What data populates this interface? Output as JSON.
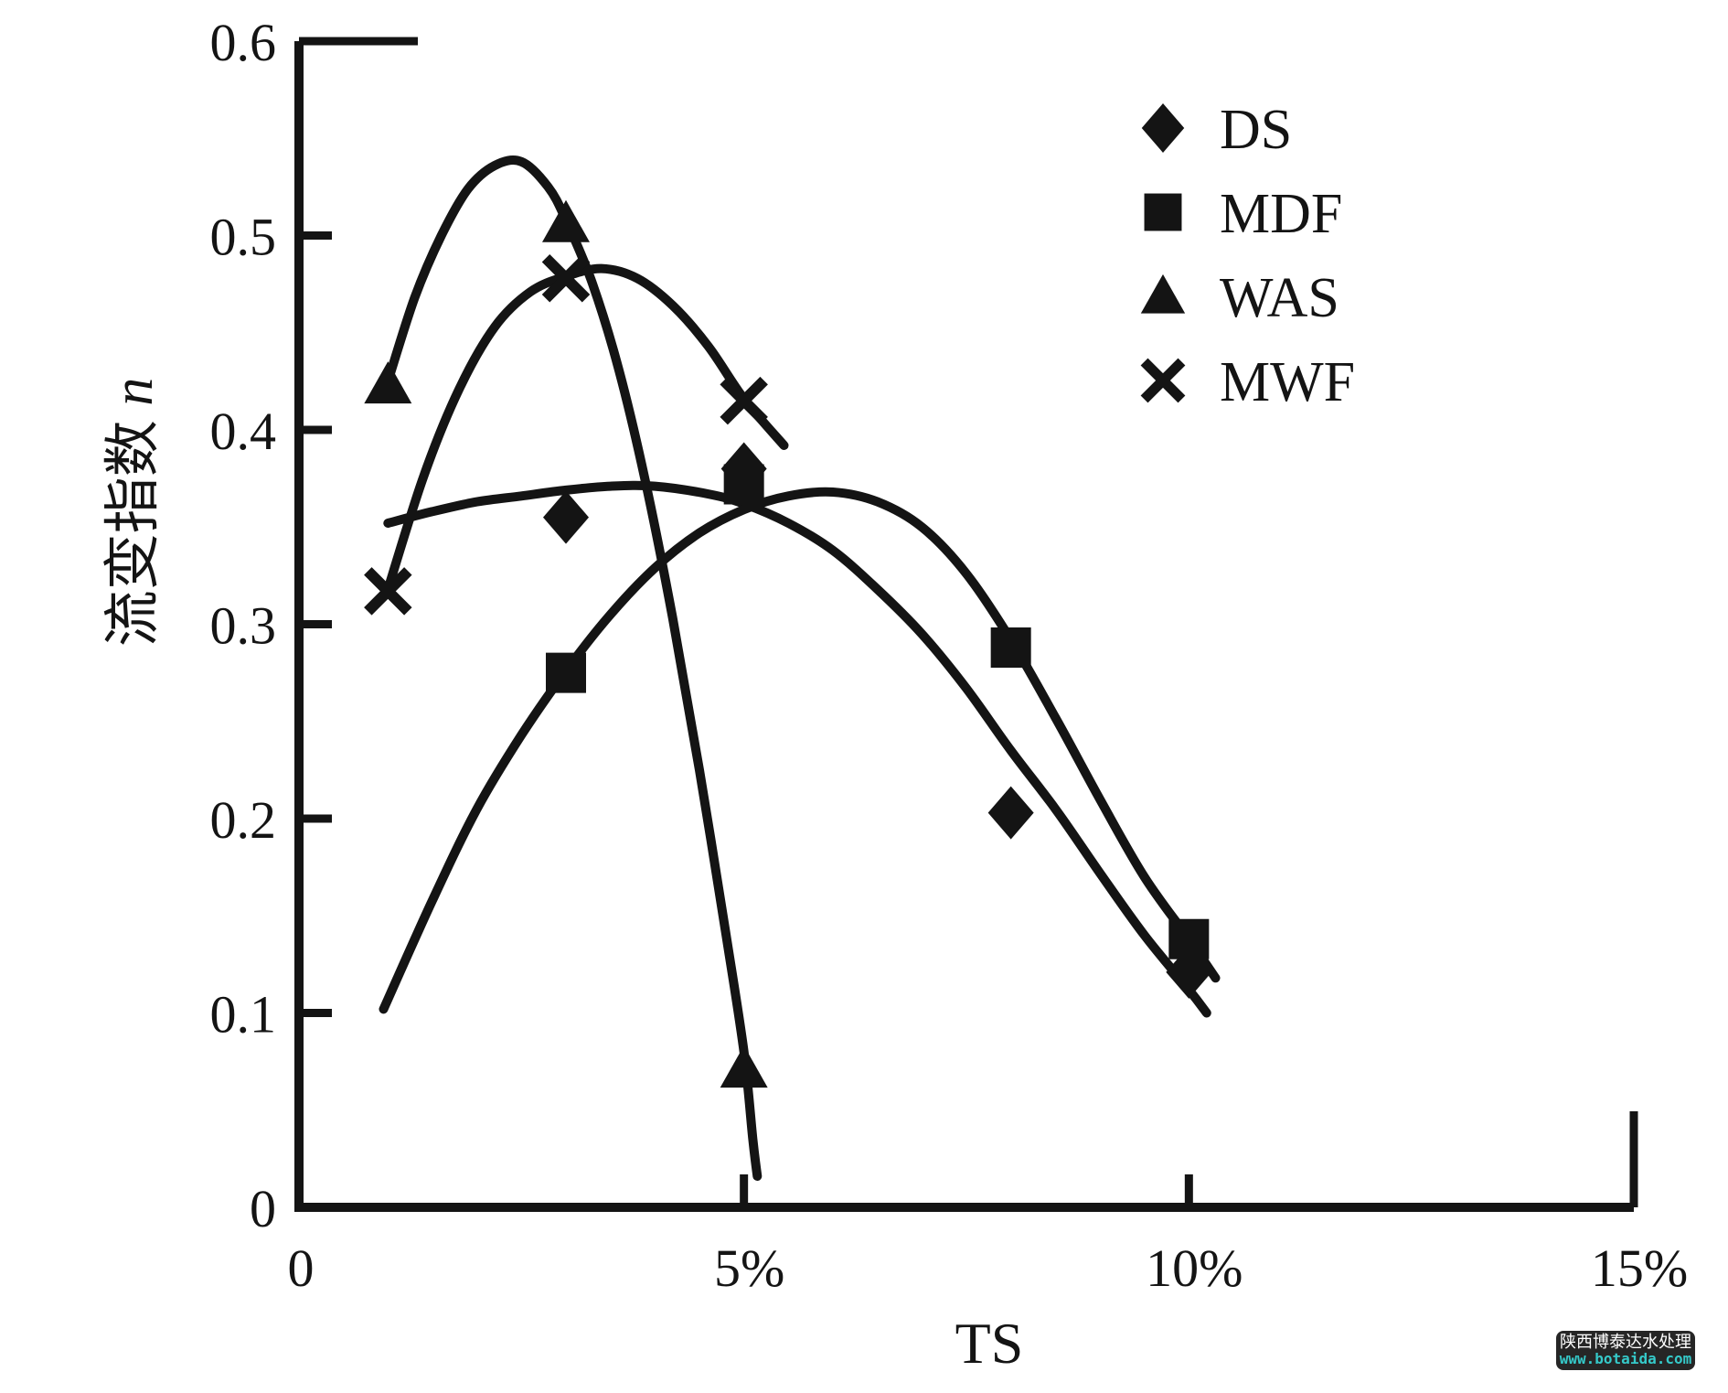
{
  "figure": {
    "background": "#ffffff",
    "ink_color": "#141414"
  },
  "chart_data": {
    "type": "scatter",
    "title": "",
    "xlabel": "TS",
    "ylabel_cjk": "流变指数",
    "ylabel_var": "n",
    "xlim": [
      0,
      15.2
    ],
    "ylim": [
      0,
      0.6
    ],
    "grid": false,
    "legend_position": "upper right",
    "x_ticks": [
      {
        "value": 0,
        "label": "0"
      },
      {
        "value": 5,
        "label": "5%"
      },
      {
        "value": 10,
        "label": "10%"
      },
      {
        "value": 15,
        "label": "15%"
      }
    ],
    "y_ticks": [
      {
        "value": 0,
        "label": "0"
      },
      {
        "value": 0.1,
        "label": "0.1"
      },
      {
        "value": 0.2,
        "label": "0.2"
      },
      {
        "value": 0.3,
        "label": "0.3"
      },
      {
        "value": 0.4,
        "label": "0.4"
      },
      {
        "value": 0.5,
        "label": "0.5"
      },
      {
        "value": 0.6,
        "label": "0.6"
      }
    ],
    "series": [
      {
        "name": "DS",
        "marker": "diamond",
        "points": [
          [
            3,
            0.355
          ],
          [
            5,
            0.38
          ],
          [
            8,
            0.203
          ],
          [
            10,
            0.121
          ]
        ],
        "fit_curve": [
          [
            1,
            0.352
          ],
          [
            1.5,
            0.358
          ],
          [
            2,
            0.363
          ],
          [
            2.5,
            0.366
          ],
          [
            3,
            0.369
          ],
          [
            3.5,
            0.371
          ],
          [
            4,
            0.371
          ],
          [
            4.6,
            0.367
          ],
          [
            5,
            0.362
          ],
          [
            5.5,
            0.352
          ],
          [
            6,
            0.338
          ],
          [
            6.5,
            0.318
          ],
          [
            7,
            0.295
          ],
          [
            7.5,
            0.267
          ],
          [
            8,
            0.235
          ],
          [
            8.5,
            0.205
          ],
          [
            9,
            0.172
          ],
          [
            9.5,
            0.14
          ],
          [
            10,
            0.112
          ],
          [
            10.2,
            0.1
          ]
        ]
      },
      {
        "name": "MDF",
        "marker": "square",
        "points": [
          [
            3,
            0.275
          ],
          [
            5,
            0.372
          ],
          [
            8,
            0.288
          ],
          [
            10,
            0.138
          ]
        ],
        "fit_curve": [
          [
            0.95,
            0.102
          ],
          [
            1.5,
            0.158
          ],
          [
            2,
            0.205
          ],
          [
            2.5,
            0.243
          ],
          [
            3,
            0.276
          ],
          [
            3.5,
            0.305
          ],
          [
            4,
            0.329
          ],
          [
            4.5,
            0.347
          ],
          [
            5,
            0.359
          ],
          [
            5.5,
            0.366
          ],
          [
            6,
            0.368
          ],
          [
            6.5,
            0.363
          ],
          [
            7,
            0.35
          ],
          [
            7.5,
            0.326
          ],
          [
            8,
            0.292
          ],
          [
            8.5,
            0.252
          ],
          [
            9,
            0.21
          ],
          [
            9.5,
            0.17
          ],
          [
            10,
            0.138
          ],
          [
            10.3,
            0.118
          ]
        ]
      },
      {
        "name": "WAS",
        "marker": "triangle",
        "points": [
          [
            1,
            0.423
          ],
          [
            3,
            0.506
          ],
          [
            5,
            0.071
          ]
        ],
        "fit_curve": [
          [
            1,
            0.425
          ],
          [
            1.3,
            0.468
          ],
          [
            1.6,
            0.5
          ],
          [
            1.9,
            0.524
          ],
          [
            2.2,
            0.536
          ],
          [
            2.5,
            0.538
          ],
          [
            2.8,
            0.525
          ],
          [
            3,
            0.508
          ],
          [
            3.3,
            0.475
          ],
          [
            3.6,
            0.43
          ],
          [
            3.9,
            0.372
          ],
          [
            4.2,
            0.303
          ],
          [
            4.5,
            0.225
          ],
          [
            4.8,
            0.14
          ],
          [
            5,
            0.08
          ],
          [
            5.1,
            0.035
          ],
          [
            5.15,
            0.016
          ]
        ]
      },
      {
        "name": "MWF",
        "marker": "x",
        "points": [
          [
            1,
            0.317
          ],
          [
            3,
            0.478
          ],
          [
            5,
            0.415
          ]
        ],
        "fit_curve": [
          [
            1,
            0.318
          ],
          [
            1.4,
            0.376
          ],
          [
            1.8,
            0.421
          ],
          [
            2.2,
            0.453
          ],
          [
            2.6,
            0.471
          ],
          [
            3,
            0.479
          ],
          [
            3.4,
            0.483
          ],
          [
            3.8,
            0.478
          ],
          [
            4.2,
            0.464
          ],
          [
            4.6,
            0.443
          ],
          [
            5,
            0.416
          ],
          [
            5.45,
            0.392
          ]
        ]
      }
    ]
  },
  "watermark": {
    "line1": "陕西博泰达水处理",
    "line2": "www.botaida.com",
    "bg": "#262626",
    "line1_color": "#ffffff",
    "line2_color": "#35c9c9"
  }
}
